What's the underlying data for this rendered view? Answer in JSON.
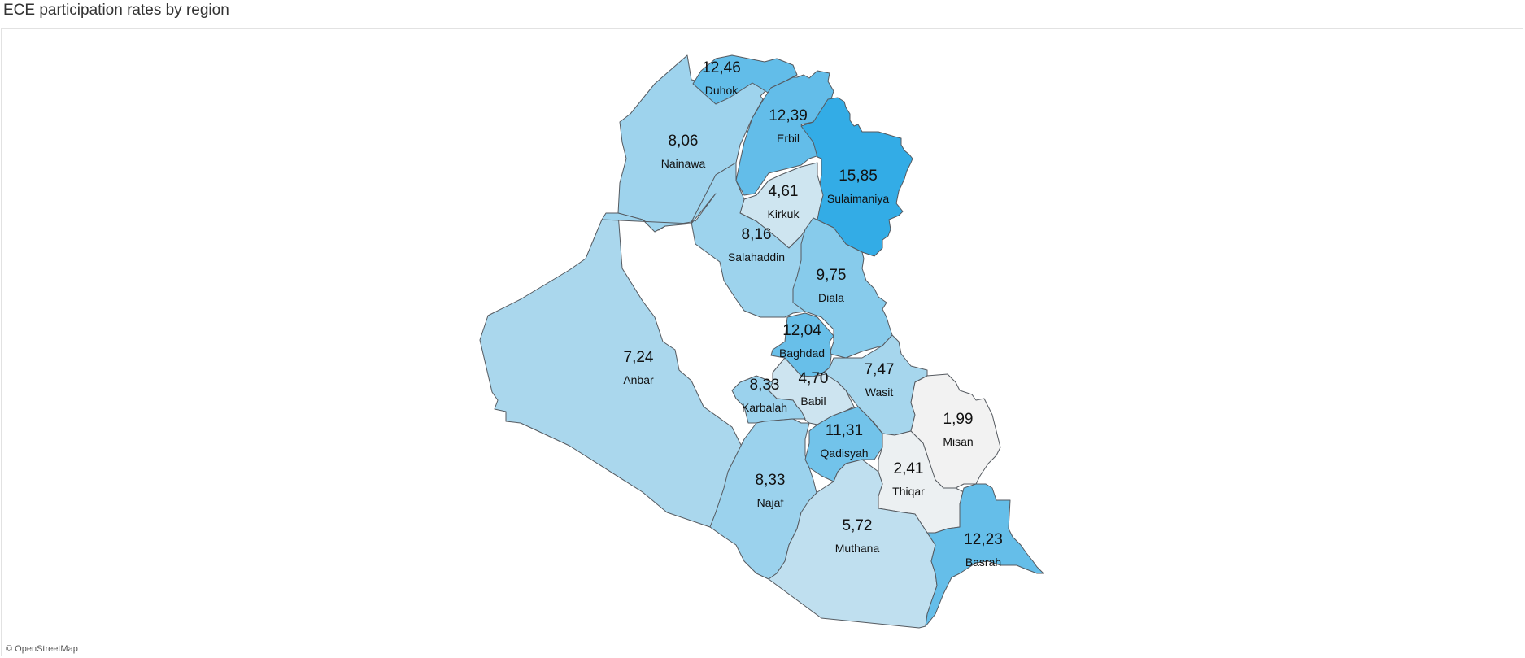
{
  "title": "ECE participation rates by region",
  "attribution": "© OpenStreetMap",
  "color_scale": {
    "low": "#f2f2f2",
    "high": "#33ace6"
  },
  "regions": [
    {
      "id": "duhok",
      "name": "Duhok",
      "value": "12,46",
      "rate": 12.46
    },
    {
      "id": "nainawa",
      "name": "Nainawa",
      "value": "8,06",
      "rate": 8.06
    },
    {
      "id": "erbil",
      "name": "Erbil",
      "value": "12,39",
      "rate": 12.39
    },
    {
      "id": "sulaimaniya",
      "name": "Sulaimaniya",
      "value": "15,85",
      "rate": 15.85
    },
    {
      "id": "kirkuk",
      "name": "Kirkuk",
      "value": "4,61",
      "rate": 4.61
    },
    {
      "id": "salahaddin",
      "name": "Salahaddin",
      "value": "8,16",
      "rate": 8.16
    },
    {
      "id": "diala",
      "name": "Diala",
      "value": "9,75",
      "rate": 9.75
    },
    {
      "id": "anbar",
      "name": "Anbar",
      "value": "7,24",
      "rate": 7.24
    },
    {
      "id": "baghdad",
      "name": "Baghdad",
      "value": "12,04",
      "rate": 12.04
    },
    {
      "id": "babil",
      "name": "Babil",
      "value": "4,70",
      "rate": 4.7
    },
    {
      "id": "wasit",
      "name": "Wasit",
      "value": "7,47",
      "rate": 7.47
    },
    {
      "id": "karbalah",
      "name": "Karbalah",
      "value": "8,33",
      "rate": 8.33
    },
    {
      "id": "qadisyah",
      "name": "Qadisyah",
      "value": "11,31",
      "rate": 11.31
    },
    {
      "id": "misan",
      "name": "Misan",
      "value": "1,99",
      "rate": 1.99
    },
    {
      "id": "thiqar",
      "name": "Thiqar",
      "value": "2,41",
      "rate": 2.41
    },
    {
      "id": "najaf",
      "name": "Najaf",
      "value": "8,33",
      "rate": 8.33
    },
    {
      "id": "muthana",
      "name": "Muthana",
      "value": "5,72",
      "rate": 5.72
    },
    {
      "id": "basrah",
      "name": "Basrah",
      "value": "12,23",
      "rate": 12.23
    }
  ]
}
